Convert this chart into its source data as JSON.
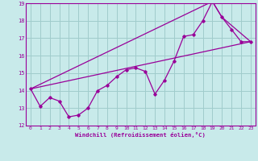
{
  "title": "",
  "xlabel": "Windchill (Refroidissement éolien,°C)",
  "ylabel": "",
  "xlim": [
    -0.5,
    23.5
  ],
  "ylim": [
    12,
    19
  ],
  "xticks": [
    0,
    1,
    2,
    3,
    4,
    5,
    6,
    7,
    8,
    9,
    10,
    11,
    12,
    13,
    14,
    15,
    16,
    17,
    18,
    19,
    20,
    21,
    22,
    23
  ],
  "yticks": [
    12,
    13,
    14,
    15,
    16,
    17,
    18,
    19
  ],
  "background_color": "#c8eaea",
  "grid_color": "#a0cccc",
  "line_color": "#990099",
  "line1_x": [
    0,
    1,
    2,
    3,
    4,
    5,
    6,
    7,
    8,
    9,
    10,
    11,
    12,
    13,
    14,
    15,
    16,
    17,
    18,
    19,
    20,
    21,
    22,
    23
  ],
  "line1_y": [
    14.1,
    13.1,
    13.6,
    13.4,
    12.5,
    12.6,
    13.0,
    14.0,
    14.3,
    14.8,
    15.2,
    15.3,
    15.1,
    13.8,
    14.6,
    15.7,
    17.1,
    17.2,
    18.0,
    19.1,
    18.2,
    17.5,
    16.8,
    16.8
  ],
  "line2_x": [
    0,
    23
  ],
  "line2_y": [
    14.1,
    16.8
  ],
  "line3_x": [
    0,
    19,
    20,
    23
  ],
  "line3_y": [
    14.1,
    19.1,
    18.2,
    16.8
  ]
}
